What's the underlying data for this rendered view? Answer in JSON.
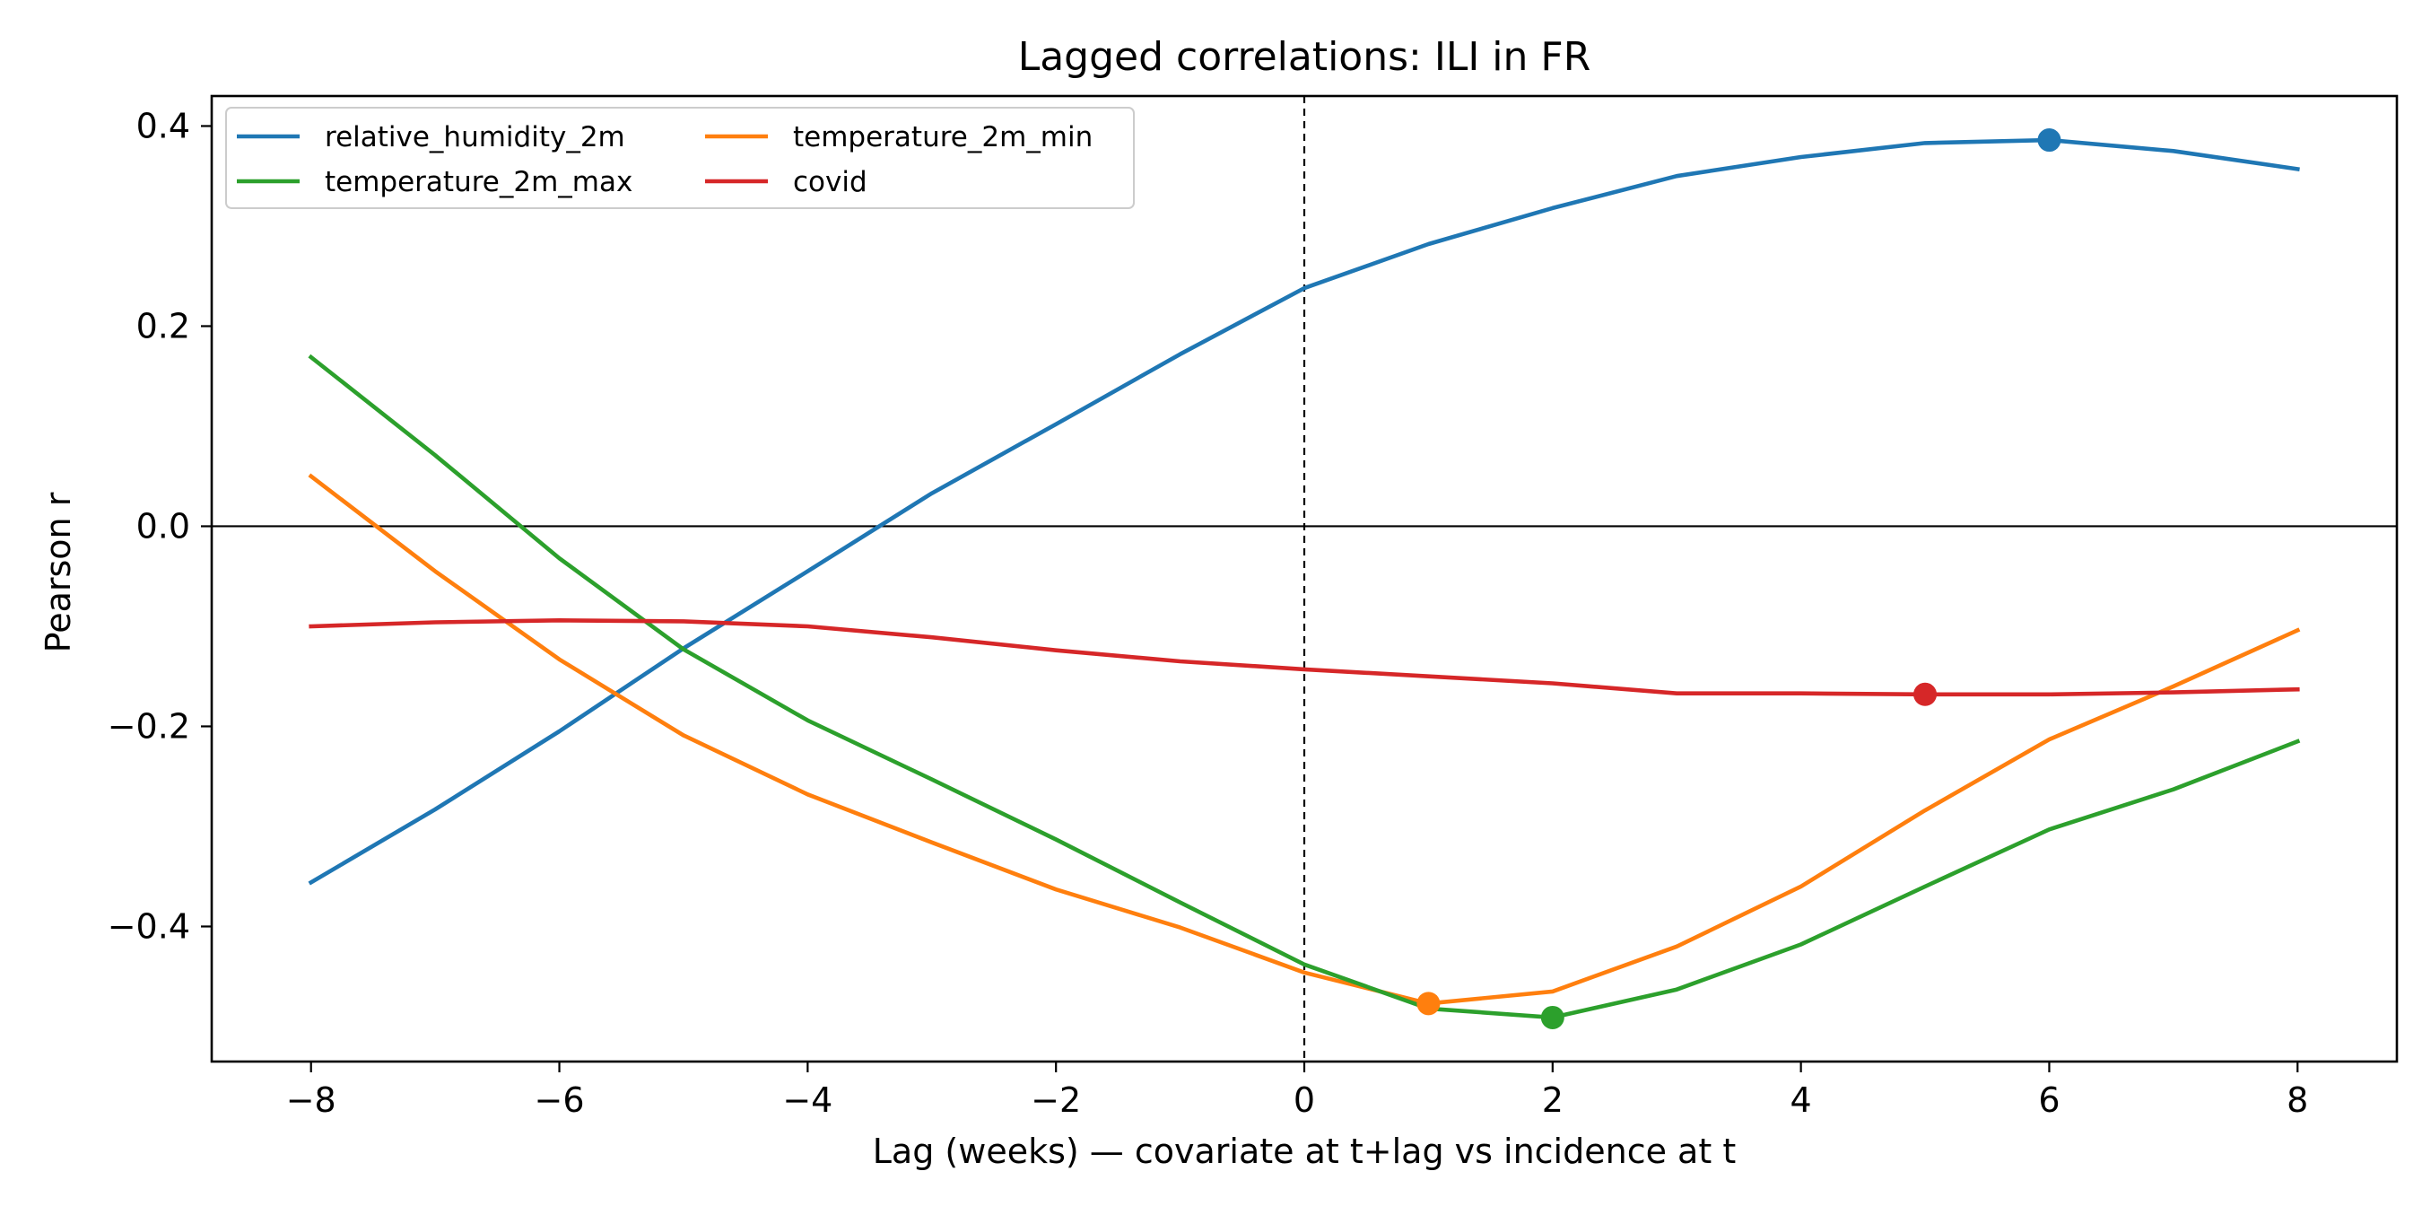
{
  "chart_data": {
    "type": "line",
    "title": "Lagged correlations: ILI in FR",
    "xlabel": "Lag (weeks) — covariate at t+lag vs incidence at t",
    "ylabel": "Pearson r",
    "xlim": [
      -8.8,
      8.8
    ],
    "ylim": [
      -0.535,
      0.43
    ],
    "xticks": [
      -8,
      -6,
      -4,
      -2,
      0,
      2,
      4,
      6,
      8
    ],
    "xtick_labels": [
      "−8",
      "−6",
      "−4",
      "−2",
      "0",
      "2",
      "4",
      "6",
      "8"
    ],
    "yticks": [
      -0.4,
      -0.2,
      0.0,
      0.2,
      0.4
    ],
    "ytick_labels": [
      "−0.4",
      "−0.2",
      "0.0",
      "0.2",
      "0.4"
    ],
    "x": [
      -8,
      -7,
      -6,
      -5,
      -4,
      -3,
      -2,
      -1,
      0,
      1,
      2,
      3,
      4,
      5,
      6,
      7,
      8
    ],
    "grid": false,
    "legend_position": "top-left",
    "legend_columns": 2,
    "reference_lines": {
      "horizontal_solid_at_y": 0,
      "vertical_dashed_at_x": 0
    },
    "series": [
      {
        "name": "relative_humidity_2m",
        "color": "#1f77b4",
        "values": [
          -0.356,
          -0.283,
          -0.205,
          -0.122,
          -0.045,
          0.033,
          0.102,
          0.172,
          0.238,
          0.282,
          0.318,
          0.35,
          0.369,
          0.383,
          0.386,
          0.375,
          0.357
        ],
        "marker": {
          "x": 6,
          "y": 0.386
        }
      },
      {
        "name": "temperature_2m_min",
        "color": "#ff7f0e",
        "values": [
          0.05,
          -0.045,
          -0.133,
          -0.209,
          -0.268,
          -0.316,
          -0.363,
          -0.401,
          -0.446,
          -0.477,
          -0.465,
          -0.42,
          -0.36,
          -0.284,
          -0.213,
          -0.16,
          -0.104
        ],
        "marker": {
          "x": 1,
          "y": -0.477
        }
      },
      {
        "name": "temperature_2m_max",
        "color": "#2ca02c",
        "values": [
          0.169,
          0.071,
          -0.032,
          -0.123,
          -0.194,
          -0.253,
          -0.313,
          -0.376,
          -0.438,
          -0.482,
          -0.491,
          -0.463,
          -0.418,
          -0.36,
          -0.303,
          -0.263,
          -0.215
        ],
        "marker": {
          "x": 2,
          "y": -0.491
        }
      },
      {
        "name": "covid",
        "color": "#d62728",
        "values": [
          -0.1,
          -0.096,
          -0.094,
          -0.095,
          -0.1,
          -0.111,
          -0.124,
          -0.135,
          -0.143,
          -0.15,
          -0.157,
          -0.167,
          -0.167,
          -0.168,
          -0.168,
          -0.166,
          -0.163
        ],
        "marker": {
          "x": 5,
          "y": -0.168
        }
      }
    ]
  }
}
